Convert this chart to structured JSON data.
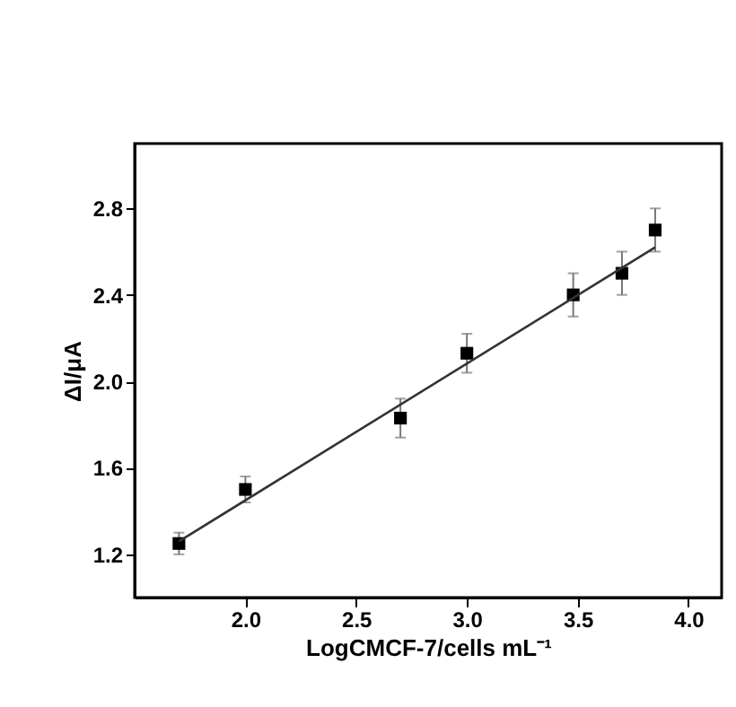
{
  "chart_data": {
    "type": "scatter",
    "xlabel": "LogCMCF-7/cells mL⁻¹",
    "ylabel": "ΔI/μA",
    "xlim": [
      1.5,
      4.15
    ],
    "ylim": [
      1.0,
      3.1
    ],
    "xticks": [
      {
        "value": 2,
        "label": "2.0"
      },
      2.5,
      {
        "value": 3,
        "label": "3.0"
      },
      3.5,
      {
        "value": 4,
        "label": "4.0"
      }
    ],
    "yticks": [
      1.2,
      1.6,
      {
        "value": 2,
        "label": "2.0"
      },
      2.4,
      2.8
    ],
    "grid": false,
    "series": [
      {
        "type": "scatter",
        "marker": "square",
        "color": "#000000",
        "x": [
          1.7,
          2.0,
          2.7,
          3.0,
          3.48,
          3.7,
          3.85
        ],
        "values": [
          1.25,
          1.5,
          1.83,
          2.13,
          2.4,
          2.5,
          2.7
        ],
        "errors": [
          0.05,
          0.06,
          0.09,
          0.09,
          0.1,
          0.1,
          0.1
        ]
      },
      {
        "type": "line",
        "marker": "none",
        "color": "#333333",
        "x": [
          1.7,
          3.85
        ],
        "values": [
          1.26,
          2.62
        ]
      }
    ]
  }
}
